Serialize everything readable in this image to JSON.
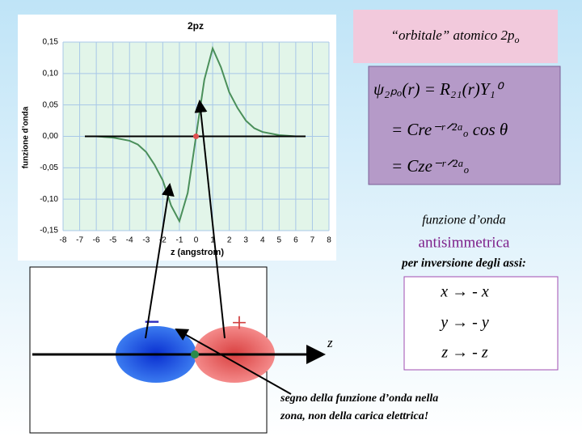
{
  "title": "“orbitale” atomico 2p",
  "title_sub": "o",
  "equations": [
    "ψ₂ₚₒ(r) = R₂₁(r)Y₁⁰",
    "= Cre⁻ʳᐟ²ᵃₒ cos θ",
    "= Cze⁻ʳᐟ²ᵃₒ"
  ],
  "caption_1": "funzione d’onda",
  "caption_2": "antisimmetrica",
  "caption_3": "per inversione degli assi:",
  "inversions": [
    "x → - x",
    "y → - y",
    "z → - z"
  ],
  "diagram": {
    "axis_label": "z",
    "minus": "−",
    "plus": "+"
  },
  "note": [
    "segno della funzione d’onda nella",
    "zona, non della carica elettrica!"
  ],
  "chart_data": {
    "type": "line",
    "title": "2pz",
    "x_label": "z (angstrom)",
    "y_label": "funzione d’onda",
    "x": [
      -6,
      -5,
      -4,
      -3.5,
      -3,
      -2.5,
      -2,
      -1.5,
      -1,
      -0.5,
      0,
      0.5,
      1,
      1.5,
      2,
      2.5,
      3,
      3.5,
      4,
      5,
      6
    ],
    "values": [
      0,
      -0.002,
      -0.007,
      -0.013,
      -0.025,
      -0.045,
      -0.07,
      -0.11,
      -0.135,
      -0.09,
      0,
      0.09,
      0.14,
      0.11,
      0.07,
      0.045,
      0.025,
      0.013,
      0.007,
      0.002,
      0
    ],
    "color": "#4a8f5a",
    "xlim": [
      -8,
      8
    ],
    "xticks": [
      -8,
      -7,
      -6,
      -5,
      -4,
      -3,
      -2,
      -1,
      0,
      1,
      2,
      3,
      4,
      5,
      6,
      7,
      8
    ],
    "ylim": [
      -0.15,
      0.15
    ],
    "yticks": [
      {
        "value": -0.15,
        "label": "-0,15"
      },
      {
        "value": -0.1,
        "label": "-0,10"
      },
      {
        "value": -0.05,
        "label": "-0,05"
      },
      {
        "value": 0,
        "label": "0,00"
      },
      {
        "value": 0.05,
        "label": "0,05"
      },
      {
        "value": 0.1,
        "label": "0,10"
      },
      {
        "value": 0.15,
        "label": "0,15"
      }
    ],
    "grid": true
  }
}
